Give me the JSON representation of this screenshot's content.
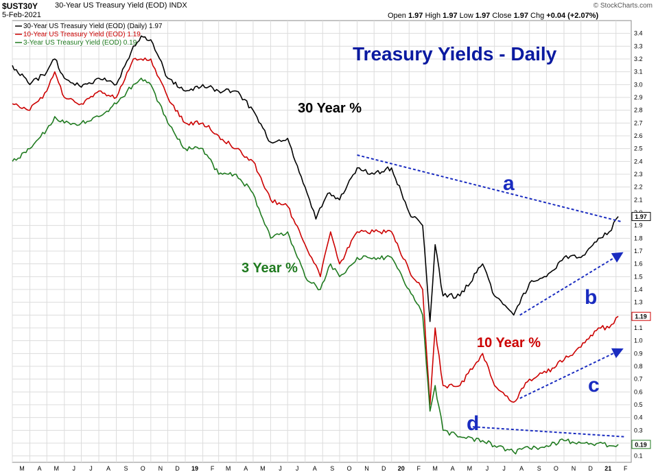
{
  "header": {
    "symbol": "$UST30Y",
    "description": "30-Year US Treasury Yield (EOD) INDX",
    "date": "5-Feb-2021",
    "ohlc": {
      "open_label": "Open",
      "open": "1.97",
      "high_label": "High",
      "high": "1.97",
      "low_label": "Low",
      "low": "1.97",
      "close_label": "Close",
      "close": "1.97",
      "chg_label": "Chg",
      "chg": "+0.04 (+2.07%)"
    },
    "brand": "© StockCharts.com"
  },
  "legend": [
    {
      "text": "30-Year US Treasury Yield (EOD) (Daily) 1.97",
      "color": "#000000"
    },
    {
      "text": "10-Year US Treasury Yield (EOD) 1.19",
      "color": "#cc0000"
    },
    {
      "text": "3-Year US Treasury Yield (EOD) 0.19",
      "color": "#1f7a1f"
    }
  ],
  "annotations": {
    "title": "Treasury Yields - Daily",
    "y30": "30 Year %",
    "y10": "10 Year %",
    "y3": "3 Year %",
    "a": "a",
    "b": "b",
    "c": "c",
    "d": "d"
  },
  "colors": {
    "y30": "#000000",
    "y10": "#cc0000",
    "y3": "#1f7a1f",
    "title": "#0a1aa0",
    "trend": "#1a2cc0",
    "grid": "#dcdcdc",
    "bg": "#ffffff"
  },
  "chart_data": {
    "type": "line",
    "title": "Treasury Yields - Daily",
    "xlabel": "",
    "ylabel": "",
    "ylim": [
      0.05,
      3.5
    ],
    "y_ticks": [
      0.1,
      0.2,
      0.3,
      0.4,
      0.5,
      0.6,
      0.7,
      0.8,
      0.9,
      1.0,
      1.1,
      1.2,
      1.3,
      1.4,
      1.5,
      1.6,
      1.7,
      1.8,
      1.9,
      2.0,
      2.1,
      2.2,
      2.3,
      2.4,
      2.5,
      2.6,
      2.7,
      2.8,
      2.9,
      3.0,
      3.1,
      3.2,
      3.3,
      3.4
    ],
    "y_tick_labels": [
      "0.1",
      "0.2",
      "0.3",
      "0.4",
      "0.5",
      "0.6",
      "0.7",
      "0.8",
      "0.9",
      "1.0",
      "1.1",
      "1.2",
      "1.3",
      "1.4",
      "1.5",
      "1.6",
      "1.7",
      "1.8",
      "1.9",
      "2.0",
      "2.1",
      "2.2",
      "2.3",
      "2.4",
      "2.5",
      "2.6",
      "2.7",
      "2.8",
      "2.9",
      "3.0",
      "3.1",
      "3.2",
      "3.3",
      "3.4"
    ],
    "x_ticks": [
      "M",
      "A",
      "M",
      "J",
      "J",
      "A",
      "S",
      "O",
      "N",
      "D",
      "19",
      "F",
      "M",
      "A",
      "M",
      "J",
      "J",
      "A",
      "S",
      "O",
      "N",
      "D",
      "20",
      "F",
      "M",
      "A",
      "M",
      "J",
      "J",
      "A",
      "S",
      "O",
      "N",
      "D",
      "21",
      "F"
    ],
    "x_range": [
      "2018-03-01",
      "2021-02-28"
    ],
    "grid": true,
    "legend_position": "top-left",
    "series": [
      {
        "name": "30-Year US Treasury Yield (EOD) (Daily) 1.97",
        "color": "#000000",
        "last": "1.97",
        "x": [
          "2018-03-01",
          "2018-04-01",
          "2018-05-01",
          "2018-05-15",
          "2018-06-01",
          "2018-07-01",
          "2018-08-01",
          "2018-09-01",
          "2018-10-01",
          "2018-10-15",
          "2018-11-01",
          "2018-12-01",
          "2019-01-01",
          "2019-02-01",
          "2019-03-01",
          "2019-04-01",
          "2019-05-01",
          "2019-06-01",
          "2019-07-01",
          "2019-08-01",
          "2019-08-20",
          "2019-09-10",
          "2019-10-01",
          "2019-11-01",
          "2019-12-01",
          "2020-01-01",
          "2020-02-01",
          "2020-02-25",
          "2020-03-09",
          "2020-03-18",
          "2020-04-01",
          "2020-05-01",
          "2020-06-10",
          "2020-07-01",
          "2020-08-04",
          "2020-09-01",
          "2020-10-01",
          "2020-11-01",
          "2020-12-01",
          "2021-01-01",
          "2021-01-20",
          "2021-02-05"
        ],
        "y": [
          3.15,
          3.0,
          3.1,
          3.2,
          3.05,
          2.98,
          3.05,
          3.0,
          3.3,
          3.38,
          3.35,
          3.05,
          2.95,
          3.0,
          2.95,
          2.95,
          2.8,
          2.55,
          2.58,
          2.2,
          1.95,
          2.15,
          2.1,
          2.35,
          2.3,
          2.35,
          2.0,
          1.9,
          1.15,
          1.75,
          1.35,
          1.35,
          1.6,
          1.35,
          1.2,
          1.45,
          1.5,
          1.65,
          1.65,
          1.8,
          1.85,
          1.97
        ]
      },
      {
        "name": "10-Year US Treasury Yield (EOD) 1.19",
        "color": "#cc0000",
        "last": "1.19",
        "x": [
          "2018-03-01",
          "2018-04-01",
          "2018-05-01",
          "2018-05-15",
          "2018-06-01",
          "2018-07-01",
          "2018-08-01",
          "2018-09-01",
          "2018-10-01",
          "2018-10-15",
          "2018-11-01",
          "2018-12-01",
          "2019-01-01",
          "2019-02-01",
          "2019-03-01",
          "2019-04-01",
          "2019-05-01",
          "2019-06-01",
          "2019-07-01",
          "2019-08-01",
          "2019-08-28",
          "2019-09-15",
          "2019-10-01",
          "2019-11-01",
          "2019-12-01",
          "2020-01-01",
          "2020-02-01",
          "2020-02-25",
          "2020-03-09",
          "2020-03-18",
          "2020-04-01",
          "2020-05-01",
          "2020-06-10",
          "2020-07-01",
          "2020-08-04",
          "2020-09-01",
          "2020-10-01",
          "2020-11-01",
          "2020-12-01",
          "2021-01-01",
          "2021-01-20",
          "2021-02-05"
        ],
        "y": [
          2.85,
          2.8,
          2.95,
          3.1,
          2.9,
          2.85,
          2.95,
          2.9,
          3.2,
          3.2,
          3.2,
          2.9,
          2.7,
          2.7,
          2.6,
          2.5,
          2.4,
          2.1,
          2.05,
          1.75,
          1.5,
          1.85,
          1.6,
          1.85,
          1.85,
          1.85,
          1.55,
          1.4,
          0.5,
          1.1,
          0.65,
          0.65,
          0.9,
          0.65,
          0.52,
          0.7,
          0.75,
          0.85,
          0.95,
          1.1,
          1.1,
          1.19
        ]
      },
      {
        "name": "3-Year US Treasury Yield (EOD) 0.19",
        "color": "#1f7a1f",
        "last": "0.19",
        "x": [
          "2018-03-01",
          "2018-04-01",
          "2018-05-01",
          "2018-05-15",
          "2018-06-01",
          "2018-07-01",
          "2018-08-01",
          "2018-09-01",
          "2018-10-01",
          "2018-10-15",
          "2018-11-01",
          "2018-12-01",
          "2019-01-01",
          "2019-02-01",
          "2019-03-01",
          "2019-04-01",
          "2019-05-01",
          "2019-06-01",
          "2019-07-01",
          "2019-08-01",
          "2019-08-28",
          "2019-09-15",
          "2019-10-01",
          "2019-11-01",
          "2019-12-01",
          "2020-01-01",
          "2020-02-01",
          "2020-02-25",
          "2020-03-09",
          "2020-03-18",
          "2020-04-01",
          "2020-05-01",
          "2020-06-10",
          "2020-07-01",
          "2020-08-04",
          "2020-09-01",
          "2020-10-01",
          "2020-11-01",
          "2020-12-01",
          "2021-01-01",
          "2021-01-20",
          "2021-02-05"
        ],
        "y": [
          2.4,
          2.5,
          2.65,
          2.75,
          2.7,
          2.7,
          2.75,
          2.85,
          3.0,
          3.05,
          3.0,
          2.7,
          2.5,
          2.5,
          2.3,
          2.3,
          2.15,
          1.8,
          1.85,
          1.5,
          1.4,
          1.6,
          1.5,
          1.65,
          1.65,
          1.65,
          1.4,
          1.2,
          0.45,
          0.65,
          0.3,
          0.25,
          0.22,
          0.18,
          0.13,
          0.16,
          0.18,
          0.22,
          0.2,
          0.2,
          0.18,
          0.19
        ]
      }
    ],
    "trendlines": [
      {
        "label": "a",
        "from": {
          "x": "2019-11-01",
          "y": 2.45
        },
        "to": {
          "x": "2021-02-10",
          "y": 1.93
        },
        "arrow": false
      },
      {
        "label": "b",
        "from": {
          "x": "2020-08-15",
          "y": 1.2
        },
        "to": {
          "x": "2021-02-10",
          "y": 1.68
        },
        "arrow": true
      },
      {
        "label": "c",
        "from": {
          "x": "2020-08-15",
          "y": 0.55
        },
        "to": {
          "x": "2021-02-10",
          "y": 0.93
        },
        "arrow": true
      },
      {
        "label": "d",
        "from": {
          "x": "2020-05-15",
          "y": 0.33
        },
        "to": {
          "x": "2021-02-15",
          "y": 0.25
        },
        "arrow": false
      }
    ]
  }
}
